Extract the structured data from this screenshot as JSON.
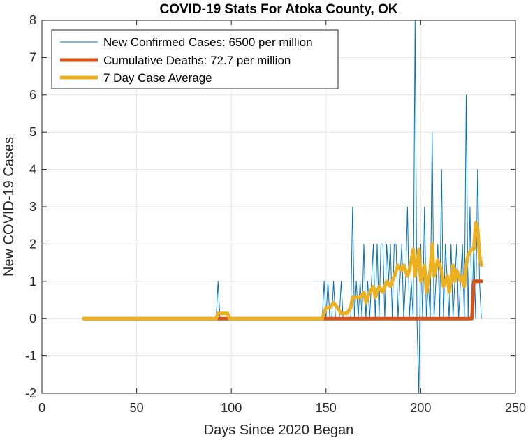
{
  "chart_data": {
    "type": "line",
    "title": "COVID-19 Stats For Atoka County, OK",
    "xlabel": "Days Since 2020 Began",
    "ylabel": "New COVID-19 Cases",
    "xlim": [
      0,
      250
    ],
    "ylim": [
      -2,
      8
    ],
    "xticks": [
      0,
      50,
      100,
      150,
      200,
      250
    ],
    "yticks": [
      -2,
      -1,
      0,
      1,
      2,
      3,
      4,
      5,
      6,
      7,
      8
    ],
    "grid": true,
    "legend_position": "top-left",
    "series": [
      {
        "name": "New Confirmed Cases: 6500 per million",
        "color": "#0072BD",
        "width": 1,
        "points": [
          [
            22,
            0
          ],
          [
            92,
            0
          ],
          [
            93,
            1
          ],
          [
            94,
            0
          ],
          [
            148,
            0
          ],
          [
            149,
            1
          ],
          [
            150,
            0
          ],
          [
            151,
            1
          ],
          [
            152,
            0
          ],
          [
            153,
            0
          ],
          [
            154,
            1
          ],
          [
            155,
            0
          ],
          [
            156,
            0
          ],
          [
            157,
            0
          ],
          [
            158,
            1
          ],
          [
            159,
            0
          ],
          [
            160,
            0
          ],
          [
            161,
            0
          ],
          [
            162,
            0
          ],
          [
            163,
            0
          ],
          [
            164,
            3
          ],
          [
            165,
            0
          ],
          [
            166,
            1
          ],
          [
            167,
            0
          ],
          [
            168,
            1
          ],
          [
            169,
            0
          ],
          [
            170,
            2
          ],
          [
            171,
            0
          ],
          [
            172,
            1
          ],
          [
            173,
            0
          ],
          [
            174,
            1
          ],
          [
            175,
            2
          ],
          [
            176,
            0
          ],
          [
            177,
            2
          ],
          [
            178,
            0
          ],
          [
            179,
            2
          ],
          [
            180,
            2
          ],
          [
            181,
            0
          ],
          [
            182,
            2
          ],
          [
            183,
            1
          ],
          [
            184,
            2
          ],
          [
            185,
            0
          ],
          [
            186,
            2
          ],
          [
            187,
            2
          ],
          [
            188,
            0
          ],
          [
            189,
            1
          ],
          [
            190,
            2
          ],
          [
            191,
            0
          ],
          [
            192,
            1
          ],
          [
            193,
            3
          ],
          [
            194,
            0
          ],
          [
            195,
            1
          ],
          [
            196,
            0
          ],
          [
            197,
            8
          ],
          [
            198,
            0
          ],
          [
            199,
            -2
          ],
          [
            200,
            2
          ],
          [
            201,
            0
          ],
          [
            202,
            3
          ],
          [
            203,
            0
          ],
          [
            204,
            1
          ],
          [
            205,
            0
          ],
          [
            206,
            5
          ],
          [
            207,
            0
          ],
          [
            208,
            1
          ],
          [
            209,
            2
          ],
          [
            210,
            0
          ],
          [
            211,
            4
          ],
          [
            212,
            0
          ],
          [
            213,
            2
          ],
          [
            214,
            1
          ],
          [
            215,
            0
          ],
          [
            216,
            2
          ],
          [
            217,
            0
          ],
          [
            218,
            1
          ],
          [
            219,
            2
          ],
          [
            220,
            0
          ],
          [
            221,
            1
          ],
          [
            222,
            2
          ],
          [
            223,
            0
          ],
          [
            224,
            6
          ],
          [
            225,
            0
          ],
          [
            226,
            3
          ],
          [
            227,
            0
          ],
          [
            228,
            2
          ],
          [
            229,
            0
          ],
          [
            230,
            4
          ],
          [
            231,
            1
          ],
          [
            232,
            0
          ]
        ]
      },
      {
        "name": "Cumulative Deaths: 72.7 per million",
        "color": "#D95319",
        "width": 5,
        "points": [
          [
            22,
            0
          ],
          [
            227,
            0
          ],
          [
            228,
            1
          ],
          [
            232,
            1
          ]
        ]
      },
      {
        "name": "7 Day Case Average",
        "color": "#EDB120",
        "width": 5,
        "points": [
          [
            22,
            0
          ],
          [
            92,
            0
          ],
          [
            93,
            0.14
          ],
          [
            98,
            0.14
          ],
          [
            99,
            0
          ],
          [
            148,
            0
          ],
          [
            150,
            0.29
          ],
          [
            152,
            0.29
          ],
          [
            154,
            0.43
          ],
          [
            156,
            0.29
          ],
          [
            158,
            0.14
          ],
          [
            161,
            0.14
          ],
          [
            163,
            0.29
          ],
          [
            164,
            0.57
          ],
          [
            166,
            0.57
          ],
          [
            168,
            0.57
          ],
          [
            170,
            0.71
          ],
          [
            171,
            0.43
          ],
          [
            173,
            0.71
          ],
          [
            175,
            0.86
          ],
          [
            176,
            0.57
          ],
          [
            178,
            0.86
          ],
          [
            180,
            0.71
          ],
          [
            182,
            1
          ],
          [
            184,
            0.86
          ],
          [
            186,
            1.14
          ],
          [
            188,
            1.43
          ],
          [
            190,
            1.29
          ],
          [
            191,
            1.43
          ],
          [
            193,
            1.14
          ],
          [
            194,
            1.29
          ],
          [
            196,
            1.86
          ],
          [
            197,
            1.14
          ],
          [
            199,
            1.86
          ],
          [
            200,
            1
          ],
          [
            202,
            1.43
          ],
          [
            203,
            0.71
          ],
          [
            205,
            1.29
          ],
          [
            206,
            2
          ],
          [
            207,
            1.14
          ],
          [
            209,
            1.57
          ],
          [
            211,
            1.29
          ],
          [
            212,
            0.86
          ],
          [
            214,
            1.14
          ],
          [
            215,
            0.71
          ],
          [
            217,
            1.43
          ],
          [
            218,
            1
          ],
          [
            219,
            1.29
          ],
          [
            221,
            1
          ],
          [
            222,
            1.14
          ],
          [
            223,
            0.86
          ],
          [
            224,
            1.43
          ],
          [
            225,
            1.71
          ],
          [
            227,
            1.86
          ],
          [
            228,
            1.86
          ],
          [
            229,
            2.57
          ],
          [
            230,
            2.43
          ],
          [
            231,
            1.71
          ],
          [
            232,
            1.43
          ]
        ]
      }
    ]
  }
}
